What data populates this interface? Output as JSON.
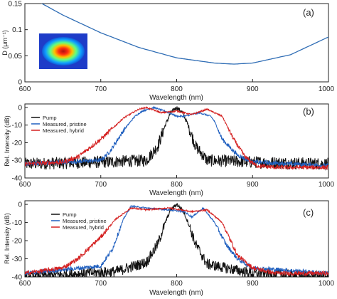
{
  "colors": {
    "pump": "#111111",
    "pristine": "#1f5fbf",
    "hybrid": "#d42020",
    "dispersion": "#2f6db5"
  },
  "chart_data": [
    {
      "type": "line",
      "panel_label": "(a)",
      "xlabel": "Wavelength (nm)",
      "ylabel": "D (μm⁻¹)",
      "xlim": [
        600,
        1000
      ],
      "ylim": [
        0,
        0.15
      ],
      "xticks": [
        600,
        700,
        800,
        900,
        1000
      ],
      "yticks": [
        0,
        0.05,
        0.1,
        0.15
      ],
      "xtick_labels": [
        "600",
        "700",
        "800",
        "900",
        "1000"
      ],
      "ytick_labels": [
        "0",
        "0.05",
        "0.1",
        "0.15"
      ],
      "inset": "mode-profile",
      "series": [
        {
          "color_key": "dispersion",
          "x": [
            620,
            650,
            700,
            750,
            800,
            850,
            875,
            900,
            950,
            1000
          ],
          "y": [
            0.152,
            0.128,
            0.094,
            0.066,
            0.046,
            0.036,
            0.034,
            0.036,
            0.052,
            0.086
          ]
        }
      ]
    },
    {
      "type": "line",
      "panel_label": "(b)",
      "xlabel": "Wavelength (nm)",
      "ylabel": "Rel. Intensity (dB)",
      "xlim": [
        600,
        1000
      ],
      "ylim": [
        -40,
        2
      ],
      "xticks": [
        600,
        700,
        800,
        900,
        1000
      ],
      "yticks": [
        0,
        -10,
        -20,
        -30,
        -40
      ],
      "xtick_labels": [
        "600",
        "700",
        "800",
        "900",
        "1000"
      ],
      "ytick_labels": [
        "0",
        "-10",
        "-20",
        "-30",
        "-40"
      ],
      "series": [
        {
          "name": "Pump",
          "color_key": "pump",
          "x": [
            600,
            700,
            760,
            775,
            785,
            792,
            800,
            808,
            815,
            825,
            840,
            900,
            1000
          ],
          "y": [
            -32,
            -31,
            -30,
            -22,
            -10,
            -3,
            0,
            -3,
            -10,
            -22,
            -30,
            -31,
            -32
          ],
          "noise": 3.5
        },
        {
          "name": "Measured, pristine",
          "color_key": "pristine",
          "x": [
            600,
            700,
            712,
            730,
            745,
            755,
            770,
            790,
            800,
            810,
            830,
            845,
            850,
            860,
            880,
            900,
            1000
          ],
          "y": [
            -32,
            -30,
            -25,
            -13,
            -5,
            -2,
            0,
            -3,
            -5,
            -5,
            -3,
            -5,
            -8,
            -18,
            -27,
            -31,
            -33
          ],
          "noise": 1.2
        },
        {
          "name": "Measured, hybrid",
          "color_key": "hybrid",
          "x": [
            600,
            650,
            670,
            700,
            730,
            750,
            760,
            780,
            800,
            820,
            840,
            860,
            875,
            890,
            905,
            930,
            1000
          ],
          "y": [
            -32,
            -31,
            -28,
            -18,
            -6,
            -1,
            0,
            -3,
            -2,
            -4,
            -1,
            -5,
            -18,
            -28,
            -33,
            -34,
            -34
          ],
          "noise": 1.2
        }
      ]
    },
    {
      "type": "line",
      "panel_label": "(c)",
      "xlabel": "Wavelength (nm)",
      "ylabel": "Rel. Intensity (dB)",
      "xlim": [
        600,
        1000
      ],
      "ylim": [
        -40,
        2
      ],
      "xticks": [
        600,
        700,
        800,
        900,
        1000
      ],
      "yticks": [
        0,
        -10,
        -20,
        -30,
        -40
      ],
      "xtick_labels": [
        "600",
        "700",
        "800",
        "900",
        "1000"
      ],
      "ytick_labels": [
        "0",
        "-10",
        "-20",
        "-30",
        "-40"
      ],
      "series": [
        {
          "name": "Pump",
          "color_key": "pump",
          "x": [
            600,
            720,
            760,
            775,
            785,
            792,
            800,
            808,
            815,
            825,
            840,
            900,
            1000
          ],
          "y": [
            -40,
            -37,
            -32,
            -22,
            -10,
            -3,
            0,
            -3,
            -10,
            -22,
            -33,
            -38,
            -40
          ],
          "noise": 3.0
        },
        {
          "name": "Measured, pristine",
          "color_key": "pristine",
          "x": [
            600,
            700,
            715,
            730,
            740,
            760,
            790,
            810,
            820,
            835,
            850,
            865,
            880,
            900,
            1000
          ],
          "y": [
            -38,
            -34,
            -25,
            -8,
            -1,
            -2,
            -3,
            -4,
            -7,
            -2,
            -10,
            -22,
            -30,
            -35,
            -38
          ],
          "noise": 1.2
        },
        {
          "name": "Measured, hybrid",
          "color_key": "hybrid",
          "x": [
            600,
            650,
            670,
            700,
            720,
            740,
            760,
            790,
            820,
            840,
            860,
            880,
            900,
            930,
            1000
          ],
          "y": [
            -38,
            -35,
            -30,
            -18,
            -8,
            -2,
            -3,
            -2,
            -4,
            -3,
            -10,
            -28,
            -35,
            -38,
            -38
          ],
          "noise": 1.2
        }
      ]
    }
  ]
}
